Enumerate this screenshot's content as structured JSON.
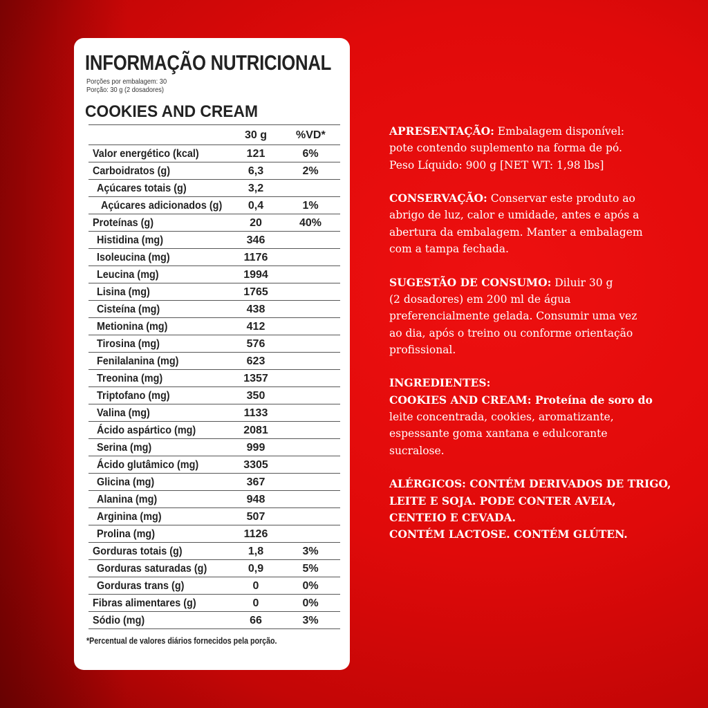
{
  "label": {
    "title": "INFORMAÇÃO NUTRICIONAL",
    "servings_per_package": "Porções por embalagem: 30",
    "serving_size": "Porção: 30 g (2 dosadores)",
    "flavor": "COOKIES AND CREAM",
    "headers": {
      "amount": "30 g",
      "dv": "%VD*"
    },
    "rows": [
      {
        "name": "Valor energético (kcal)",
        "amount": "121",
        "dv": "6%",
        "indent": 0
      },
      {
        "name": "Carboidratos (g)",
        "amount": "6,3",
        "dv": "2%",
        "indent": 0
      },
      {
        "name": "Açúcares totais (g)",
        "amount": "3,2",
        "dv": "",
        "indent": 1
      },
      {
        "name": "Açúcares adicionados (g)",
        "amount": "0,4",
        "dv": "1%",
        "indent": 2
      },
      {
        "name": "Proteínas (g)",
        "amount": "20",
        "dv": "40%",
        "indent": 0
      },
      {
        "name": "Histidina (mg)",
        "amount": "346",
        "dv": "",
        "indent": 1
      },
      {
        "name": "Isoleucina (mg)",
        "amount": "1176",
        "dv": "",
        "indent": 1
      },
      {
        "name": "Leucina (mg)",
        "amount": "1994",
        "dv": "",
        "indent": 1
      },
      {
        "name": "Lisina (mg)",
        "amount": "1765",
        "dv": "",
        "indent": 1
      },
      {
        "name": "Cisteína (mg)",
        "amount": "438",
        "dv": "",
        "indent": 1
      },
      {
        "name": "Metionina (mg)",
        "amount": "412",
        "dv": "",
        "indent": 1
      },
      {
        "name": "Tirosina (mg)",
        "amount": "576",
        "dv": "",
        "indent": 1
      },
      {
        "name": "Fenilalanina (mg)",
        "amount": "623",
        "dv": "",
        "indent": 1
      },
      {
        "name": "Treonina (mg)",
        "amount": "1357",
        "dv": "",
        "indent": 1
      },
      {
        "name": "Triptofano (mg)",
        "amount": "350",
        "dv": "",
        "indent": 1
      },
      {
        "name": "Valina (mg)",
        "amount": "1133",
        "dv": "",
        "indent": 1
      },
      {
        "name": "Ácido aspártico (mg)",
        "amount": "2081",
        "dv": "",
        "indent": 1
      },
      {
        "name": "Serina (mg)",
        "amount": "999",
        "dv": "",
        "indent": 1
      },
      {
        "name": "Ácido glutâmico (mg)",
        "amount": "3305",
        "dv": "",
        "indent": 1
      },
      {
        "name": "Glicina (mg)",
        "amount": "367",
        "dv": "",
        "indent": 1
      },
      {
        "name": "Alanina (mg)",
        "amount": "948",
        "dv": "",
        "indent": 1
      },
      {
        "name": "Arginina (mg)",
        "amount": "507",
        "dv": "",
        "indent": 1
      },
      {
        "name": "Prolina (mg)",
        "amount": "1126",
        "dv": "",
        "indent": 1
      },
      {
        "name": "Gorduras totais (g)",
        "amount": "1,8",
        "dv": "3%",
        "indent": 0
      },
      {
        "name": "Gorduras saturadas (g)",
        "amount": "0,9",
        "dv": "5%",
        "indent": 1
      },
      {
        "name": "Gorduras trans (g)",
        "amount": "0",
        "dv": "0%",
        "indent": 1
      },
      {
        "name": "Fibras alimentares (g)",
        "amount": "0",
        "dv": "0%",
        "indent": 0
      },
      {
        "name": "Sódio (mg)",
        "amount": "66",
        "dv": "3%",
        "indent": 0
      }
    ],
    "footnote": "*Percentual de valores diários fornecidos pela porção."
  },
  "info": [
    {
      "lines": [
        {
          "bold": "APRESENTAÇÃO:",
          "text": " Embalagem disponível:"
        },
        {
          "bold": "",
          "text": "pote contendo suplemento na forma de pó."
        },
        {
          "bold": "",
          "text": "Peso Líquido: 900 g [NET WT: 1,98 lbs]"
        }
      ]
    },
    {
      "lines": [
        {
          "bold": "CONSERVAÇÃO:",
          "text": " Conservar este produto ao"
        },
        {
          "bold": "",
          "text": "abrigo de luz, calor e umidade, antes e após a"
        },
        {
          "bold": "",
          "text": "abertura da embalagem. Manter a embalagem"
        },
        {
          "bold": "",
          "text": "com a tampa fechada."
        }
      ]
    },
    {
      "lines": [
        {
          "bold": "SUGESTÃO DE CONSUMO:",
          "text": " Diluir 30 g"
        },
        {
          "bold": "",
          "text": "(2 dosadores) em 200 ml de água"
        },
        {
          "bold": "",
          "text": "preferencialmente gelada. Consumir uma vez"
        },
        {
          "bold": "",
          "text": "ao dia, após o treino ou conforme orientação"
        },
        {
          "bold": "",
          "text": "profissional."
        }
      ]
    },
    {
      "lines": [
        {
          "bold": "INGREDIENTES:",
          "text": ""
        },
        {
          "bold": "",
          "text": "COOKIES AND CREAM: Proteína de soro do"
        },
        {
          "bold": "",
          "text": "leite concentrada, cookies, aromatizante,"
        },
        {
          "bold": "",
          "text": "espessante goma xantana e edulcorante"
        },
        {
          "bold": "",
          "text": "sucralose."
        }
      ]
    },
    {
      "lines": [
        {
          "bold": "",
          "text": "ALÉRGICOS: CONTÉM  DERIVADOS DE TRIGO,"
        },
        {
          "bold": "",
          "text": "LEITE E SOJA. PODE CONTER AVEIA,"
        },
        {
          "bold": "",
          "text": "CENTEIO E CEVADA."
        },
        {
          "bold": "",
          "text": "CONTÉM LACTOSE. CONTÉM GLÚTEN."
        }
      ]
    }
  ]
}
